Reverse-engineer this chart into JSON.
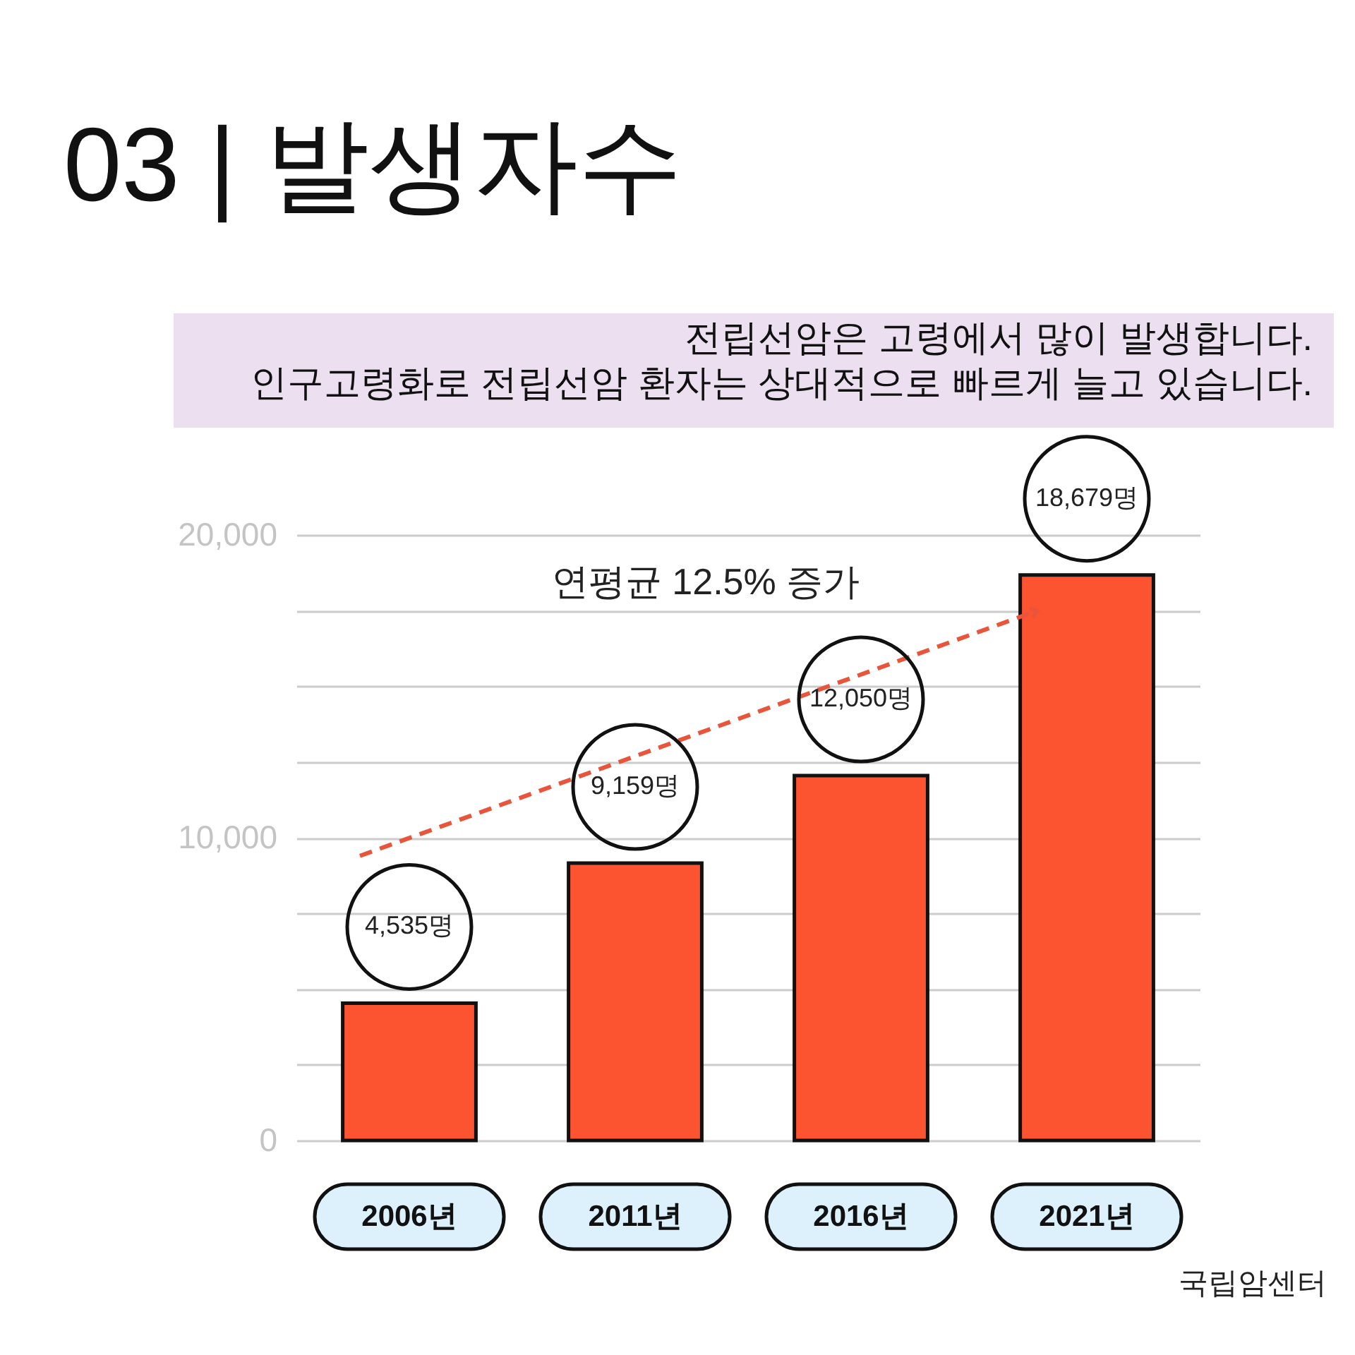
{
  "chart_data": {
    "type": "bar",
    "title": "03 | 발생자수",
    "subtitle": "전립선암은 고령에서 많이 발생합니다.\n인구고령화로 전립선암 환자는 상대적으로 빠르게 늘고 있습니다.",
    "categories": [
      "2006년",
      "2011년",
      "2016년",
      "2021년"
    ],
    "series": [
      {
        "color": "#fc5430",
        "values": [
          4535,
          9159,
          12050,
          18679
        ],
        "value_labels": [
          "4,535명",
          "9,159명",
          "12,050명",
          "18,679명"
        ]
      },
      {
        "type": "line",
        "color": "#e8553a",
        "x": [
          "2006년",
          "2021년"
        ],
        "values": [
          9400,
          17500
        ],
        "line_style": "dashed"
      }
    ],
    "ylim": [
      0,
      20000
    ],
    "yticks": [
      0,
      {
        "value": 2500,
        "label": null
      },
      {
        "value": 5000,
        "label": null
      },
      {
        "value": 7500,
        "label": null
      },
      {
        "value": 10000,
        "label": "10,000"
      },
      {
        "value": 12500,
        "label": null
      },
      {
        "value": 15000,
        "label": null
      },
      {
        "value": 17500,
        "label": null
      },
      {
        "value": 20000,
        "label": "20,000"
      }
    ],
    "grid": "y",
    "annotations": [
      "연평균 12.5% 증가",
      "국립암센터"
    ]
  }
}
